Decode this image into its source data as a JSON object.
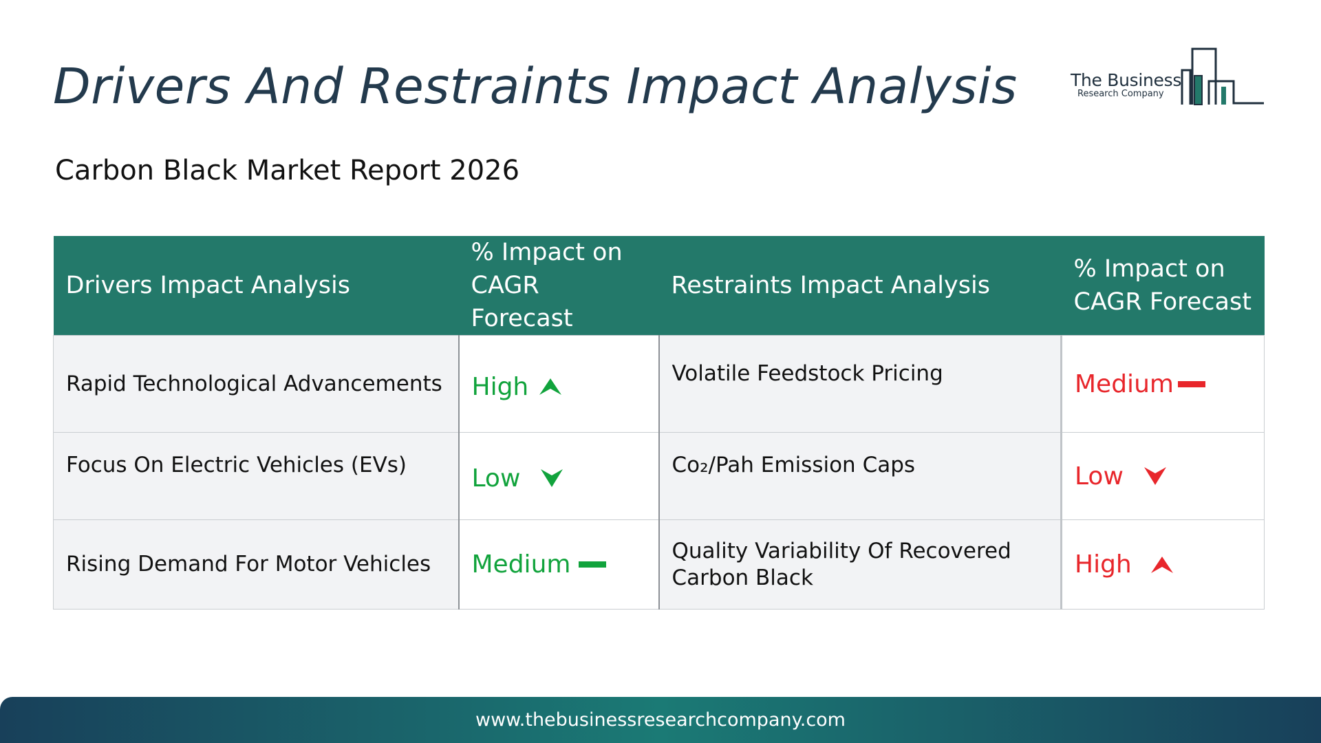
{
  "header": {
    "title": "Drivers And Restraints Impact Analysis",
    "subtitle": "Carbon Black Market Report 2026"
  },
  "logo": {
    "line1": "The Business",
    "line2": "Research Company",
    "color": "#1f2f3d",
    "accent": "#23796a"
  },
  "table": {
    "headers": {
      "drivers": "Drivers Impact Analysis",
      "drivers_impact": "% Impact on CAGR Forecast",
      "restraints": "Restraints Impact Analysis",
      "restraints_impact": "% Impact on CAGR Forecast"
    },
    "rows": [
      {
        "driver": "Rapid Technological Advancements",
        "driver_impact": "High",
        "driver_icon": "arrow-up-icon",
        "restraint": "Volatile Feedstock Pricing",
        "restraint_impact": "Medium",
        "restraint_icon": "dash-icon"
      },
      {
        "driver": "Focus On Electric Vehicles (EVs)",
        "driver_impact": "Low",
        "driver_icon": "arrow-down-icon",
        "restraint": "Co₂/Pah Emission Caps",
        "restraint_impact": "Low",
        "restraint_icon": "arrow-down-icon"
      },
      {
        "driver": "Rising Demand For Motor Vehicles",
        "driver_impact": "Medium",
        "driver_icon": "dash-icon",
        "restraint": "Quality Variability Of Recovered Carbon Black",
        "restraint_impact": "High",
        "restraint_icon": "arrow-up-icon"
      }
    ]
  },
  "footer": {
    "url": "www.thebusinessresearchcompany.com"
  },
  "colors": {
    "header_bg": "#23796a",
    "driver_impact": "#11a33c",
    "restraint_impact": "#e8262b",
    "title": "#233a4d"
  }
}
